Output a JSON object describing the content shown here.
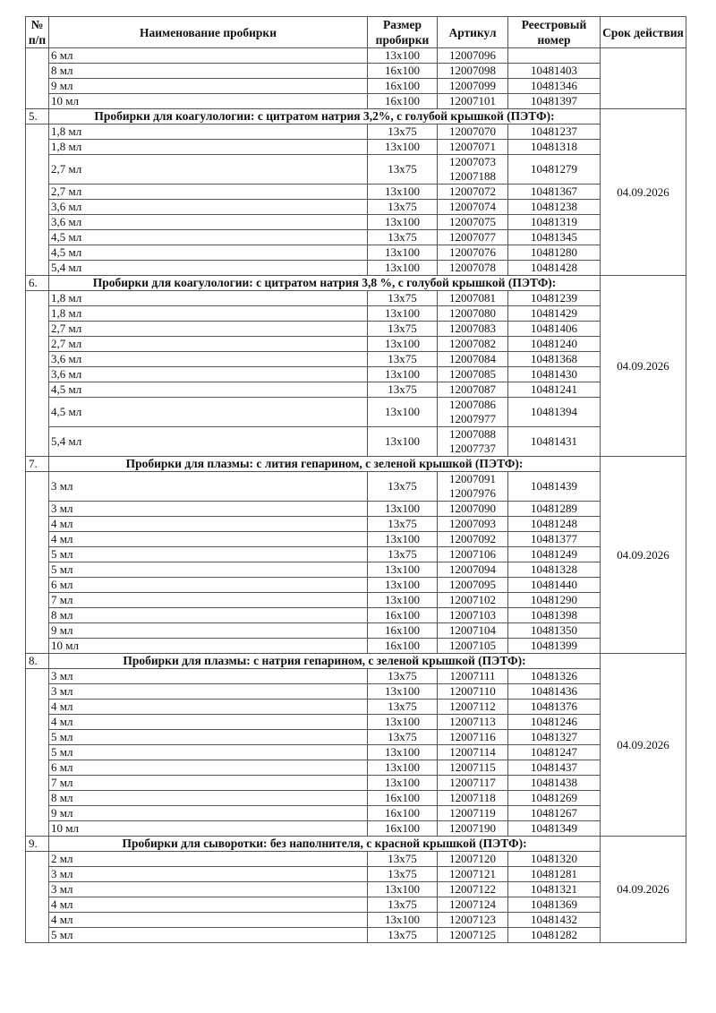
{
  "header": {
    "num": "№ п/п",
    "name": "Наименование пробирки",
    "size": "Размер пробирки",
    "article": "Артикул",
    "registry": "Реестровый номер",
    "validity": "Срок действия"
  },
  "sections": [
    {
      "num": "",
      "title": "",
      "validity": "",
      "rows": [
        {
          "name": "6 мл",
          "size": "13x100",
          "articles": [
            "12007096"
          ],
          "registry": ""
        },
        {
          "name": "8 мл",
          "size": "16x100",
          "articles": [
            "12007098"
          ],
          "registry": "10481403"
        },
        {
          "name": "9 мл",
          "size": "16x100",
          "articles": [
            "12007099"
          ],
          "registry": "10481346"
        },
        {
          "name": "10 мл",
          "size": "16x100",
          "articles": [
            "12007101"
          ],
          "registry": "10481397"
        }
      ]
    },
    {
      "num": "5.",
      "title": "Пробирки для коагулологии: с цитратом натрия 3,2%, с голубой крышкой (ПЭТФ):",
      "validity": "04.09.2026",
      "rows": [
        {
          "name": "1,8 мл",
          "size": "13x75",
          "articles": [
            "12007070"
          ],
          "registry": "10481237"
        },
        {
          "name": "1,8 мл",
          "size": "13x100",
          "articles": [
            "12007071"
          ],
          "registry": "10481318"
        },
        {
          "name": "2,7 мл",
          "size": "13x75",
          "articles": [
            "12007073",
            "12007188"
          ],
          "registry": "10481279"
        },
        {
          "name": "2,7 мл",
          "size": "13x100",
          "articles": [
            "12007072"
          ],
          "registry": "10481367"
        },
        {
          "name": "3,6 мл",
          "size": "13x75",
          "articles": [
            "12007074"
          ],
          "registry": "10481238"
        },
        {
          "name": "3,6 мл",
          "size": "13x100",
          "articles": [
            "12007075"
          ],
          "registry": "10481319"
        },
        {
          "name": "4,5 мл",
          "size": "13x75",
          "articles": [
            "12007077"
          ],
          "registry": "10481345"
        },
        {
          "name": "4,5 мл",
          "size": "13x100",
          "articles": [
            "12007076"
          ],
          "registry": "10481280"
        },
        {
          "name": "5,4 мл",
          "size": "13x100",
          "articles": [
            "12007078"
          ],
          "registry": "10481428"
        }
      ]
    },
    {
      "num": "6.",
      "title": "Пробирки для коагулологии: с цитратом натрия 3,8 %, с голубой крышкой (ПЭТФ):",
      "validity": "04.09.2026",
      "rows": [
        {
          "name": "1,8 мл",
          "size": "13x75",
          "articles": [
            "12007081"
          ],
          "registry": "10481239"
        },
        {
          "name": "1,8 мл",
          "size": "13x100",
          "articles": [
            "12007080"
          ],
          "registry": "10481429"
        },
        {
          "name": "2,7 мл",
          "size": "13x75",
          "articles": [
            "12007083"
          ],
          "registry": "10481406"
        },
        {
          "name": "2,7 мл",
          "size": "13x100",
          "articles": [
            "12007082"
          ],
          "registry": "10481240"
        },
        {
          "name": "3,6 мл",
          "size": "13x75",
          "articles": [
            "12007084"
          ],
          "registry": "10481368"
        },
        {
          "name": "3,6 мл",
          "size": "13x100",
          "articles": [
            "12007085"
          ],
          "registry": "10481430"
        },
        {
          "name": "4,5 мл",
          "size": "13x75",
          "articles": [
            "12007087"
          ],
          "registry": "10481241"
        },
        {
          "name": "4,5 мл",
          "size": "13x100",
          "articles": [
            "12007086",
            "12007977"
          ],
          "registry": "10481394"
        },
        {
          "name": "5,4 мл",
          "size": "13x100",
          "articles": [
            "12007088",
            "12007737"
          ],
          "registry": "10481431"
        }
      ]
    },
    {
      "num": "7.",
      "title": "Пробирки для плазмы: с лития гепарином, с зеленой крышкой (ПЭТФ):",
      "validity": "04.09.2026",
      "rows": [
        {
          "name": "3 мл",
          "size": "13x75",
          "articles": [
            "12007091",
            "12007976"
          ],
          "registry": "10481439"
        },
        {
          "name": "3 мл",
          "size": "13x100",
          "articles": [
            "12007090"
          ],
          "registry": "10481289"
        },
        {
          "name": "4 мл",
          "size": "13x75",
          "articles": [
            "12007093"
          ],
          "registry": "10481248"
        },
        {
          "name": "4 мл",
          "size": "13x100",
          "articles": [
            "12007092"
          ],
          "registry": "10481377"
        },
        {
          "name": "5 мл",
          "size": "13x75",
          "articles": [
            "12007106"
          ],
          "registry": "10481249"
        },
        {
          "name": "5 мл",
          "size": "13x100",
          "articles": [
            "12007094"
          ],
          "registry": "10481328"
        },
        {
          "name": "6 мл",
          "size": "13x100",
          "articles": [
            "12007095"
          ],
          "registry": "10481440"
        },
        {
          "name": "7 мл",
          "size": "13x100",
          "articles": [
            "12007102"
          ],
          "registry": "10481290"
        },
        {
          "name": "8 мл",
          "size": "16x100",
          "articles": [
            "12007103"
          ],
          "registry": "10481398"
        },
        {
          "name": "9 мл",
          "size": "16x100",
          "articles": [
            "12007104"
          ],
          "registry": "10481350"
        },
        {
          "name": "10 мл",
          "size": "16x100",
          "articles": [
            "12007105"
          ],
          "registry": "10481399"
        }
      ]
    },
    {
      "num": "8.",
      "title": "Пробирки для плазмы: с натрия гепарином, с зеленой крышкой (ПЭТФ):",
      "validity": "04.09.2026",
      "rows": [
        {
          "name": "3 мл",
          "size": "13x75",
          "articles": [
            "12007111"
          ],
          "registry": "10481326"
        },
        {
          "name": "3 мл",
          "size": "13x100",
          "articles": [
            "12007110"
          ],
          "registry": "10481436"
        },
        {
          "name": "4 мл",
          "size": "13x75",
          "articles": [
            "12007112"
          ],
          "registry": "10481376"
        },
        {
          "name": "4 мл",
          "size": "13x100",
          "articles": [
            "12007113"
          ],
          "registry": "10481246"
        },
        {
          "name": "5 мл",
          "size": "13x75",
          "articles": [
            "12007116"
          ],
          "registry": "10481327"
        },
        {
          "name": "5 мл",
          "size": "13x100",
          "articles": [
            "12007114"
          ],
          "registry": "10481247"
        },
        {
          "name": "6 мл",
          "size": "13x100",
          "articles": [
            "12007115"
          ],
          "registry": "10481437"
        },
        {
          "name": "7 мл",
          "size": "13x100",
          "articles": [
            "12007117"
          ],
          "registry": "10481438"
        },
        {
          "name": "8 мл",
          "size": "16x100",
          "articles": [
            "12007118"
          ],
          "registry": "10481269"
        },
        {
          "name": "9 мл",
          "size": "16x100",
          "articles": [
            "12007119"
          ],
          "registry": "10481267"
        },
        {
          "name": "10 мл",
          "size": "16x100",
          "articles": [
            "12007190"
          ],
          "registry": "10481349"
        }
      ]
    },
    {
      "num": "9.",
      "title": "Пробирки для сыворотки: без наполнителя, с красной крышкой (ПЭТФ):",
      "validity": "04.09.2026",
      "rows": [
        {
          "name": "2 мл",
          "size": "13x75",
          "articles": [
            "12007120"
          ],
          "registry": "10481320"
        },
        {
          "name": "3 мл",
          "size": "13x75",
          "articles": [
            "12007121"
          ],
          "registry": "10481281"
        },
        {
          "name": "3 мл",
          "size": "13x100",
          "articles": [
            "12007122"
          ],
          "registry": "10481321"
        },
        {
          "name": "4 мл",
          "size": "13x75",
          "articles": [
            "12007124"
          ],
          "registry": "10481369"
        },
        {
          "name": "4 мл",
          "size": "13x100",
          "articles": [
            "12007123"
          ],
          "registry": "10481432"
        },
        {
          "name": "5 мл",
          "size": "13x75",
          "articles": [
            "12007125"
          ],
          "registry": "10481282"
        }
      ]
    }
  ]
}
